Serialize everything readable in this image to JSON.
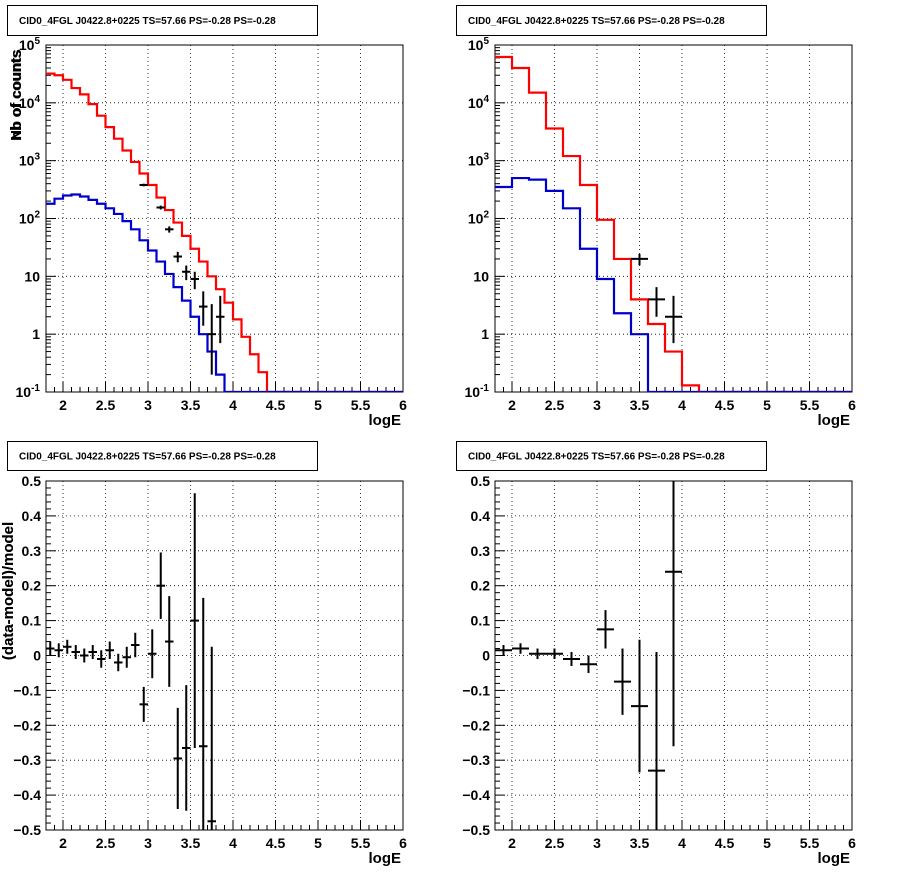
{
  "colors": {
    "data": "#000000",
    "total_model": "#ff0000",
    "source_model": "#0000cc",
    "grid": "#000000",
    "background": "#ffffff"
  },
  "chart_data": [
    {
      "id": "counts-fine",
      "type": "line",
      "title": "CID0_4FGL J0422.8+0225 TS=57.66 PS=-0.28 PS=-0.28",
      "xlabel": "logE",
      "ylabel": "Nb of counts",
      "xlim": [
        1.8,
        6.0
      ],
      "ylim": [
        0.1,
        100000
      ],
      "yscale": "log",
      "grid": true,
      "x_ticks": [
        "2",
        "2.5",
        "3",
        "3.5",
        "4",
        "4.5",
        "5",
        "5.5",
        "6"
      ],
      "y_ticks": [
        "10^-1",
        "1",
        "10",
        "10^2",
        "10^3",
        "10^4",
        "10^5"
      ],
      "bin_edges": [
        1.8,
        1.9,
        2.0,
        2.1,
        2.2,
        2.3,
        2.4,
        2.5,
        2.6,
        2.7,
        2.8,
        2.9,
        3.0,
        3.1,
        3.2,
        3.3,
        3.4,
        3.5,
        3.6,
        3.7,
        3.8,
        3.9,
        4.0,
        4.1,
        4.2,
        4.3,
        4.4,
        4.5,
        4.6,
        4.7,
        4.8,
        4.9,
        5.0,
        5.1,
        5.2,
        5.3,
        5.4,
        5.5,
        5.6,
        5.7,
        5.8,
        5.9,
        6.0
      ],
      "series": [
        {
          "kind": "step",
          "color": "total_model",
          "values": [
            32000,
            30000,
            25000,
            18000,
            14000,
            9500,
            6000,
            3800,
            2400,
            1500,
            950,
            600,
            380,
            230,
            140,
            85,
            50,
            30,
            18,
            10,
            6,
            3.5,
            1.8,
            0.9,
            0.45,
            0.22,
            0.1,
            0.1,
            0.1,
            0.1,
            0.1,
            0.1,
            0.1,
            0.1,
            0.1,
            0.1,
            0.1,
            0.1,
            0.1,
            0.1,
            0.1,
            0.1
          ]
        },
        {
          "kind": "step",
          "color": "source_model",
          "values": [
            180,
            220,
            250,
            260,
            240,
            210,
            180,
            150,
            120,
            90,
            65,
            42,
            28,
            18,
            11,
            6.5,
            3.8,
            2.0,
            1.0,
            0.5,
            0.2,
            0.1,
            0.1,
            0.1,
            0.1,
            0.1,
            0.1,
            0.1,
            0.1,
            0.1,
            0.1,
            0.1,
            0.1,
            0.1,
            0.1,
            0.1,
            0.1,
            0.1,
            0.1,
            0.1,
            0.1,
            0.1
          ]
        },
        {
          "kind": "points",
          "color": "data",
          "x": [
            2.95,
            3.15,
            3.25,
            3.35,
            3.45,
            3.55,
            3.65,
            3.75,
            3.85
          ],
          "values": [
            380,
            155,
            65,
            22,
            12,
            9,
            3,
            1,
            2
          ],
          "err_lo": [
            20,
            12,
            8,
            4.5,
            3.4,
            3,
            1.6,
            0.8,
            1.3
          ],
          "err_hi": [
            20,
            12,
            8,
            4.5,
            3.4,
            3,
            2.5,
            2.3,
            2.6
          ]
        }
      ]
    },
    {
      "id": "counts-coarse",
      "type": "line",
      "title": "CID0_4FGL J0422.8+0225 TS=57.66 PS=-0.28 PS=-0.28",
      "xlabel": "logE",
      "ylabel": "nb of counts",
      "xlim": [
        1.8,
        6.0
      ],
      "ylim": [
        0.1,
        100000
      ],
      "yscale": "log",
      "grid": true,
      "x_ticks": [
        "2",
        "2.5",
        "3",
        "3.5",
        "4",
        "4.5",
        "5",
        "5.5",
        "6"
      ],
      "y_ticks": [
        "10^-1",
        "1",
        "10",
        "10^2",
        "10^3",
        "10^4",
        "10^5"
      ],
      "bin_edges": [
        1.8,
        2.0,
        2.2,
        2.4,
        2.6,
        2.8,
        3.0,
        3.2,
        3.4,
        3.6,
        3.8,
        4.0,
        4.2,
        4.4,
        4.6,
        4.8,
        5.0,
        5.2,
        5.4,
        5.6,
        5.8,
        6.0
      ],
      "series": [
        {
          "kind": "step",
          "color": "total_model",
          "values": [
            62000,
            40000,
            15000,
            3600,
            1200,
            380,
            95,
            20,
            4,
            1.5,
            0.5,
            0.13,
            0.1,
            0.1,
            0.1,
            0.1,
            0.1,
            0.1,
            0.1,
            0.1,
            0.1
          ]
        },
        {
          "kind": "step",
          "color": "source_model",
          "values": [
            350,
            500,
            470,
            300,
            150,
            30,
            9,
            2.3,
            1,
            0.1,
            0.1,
            0.1,
            0.1,
            0.1,
            0.1,
            0.1,
            0.1,
            0.1,
            0.1,
            0.1,
            0.1
          ]
        },
        {
          "kind": "points",
          "color": "data",
          "x": [
            3.5,
            3.7,
            3.9
          ],
          "values": [
            20,
            4,
            2
          ],
          "err_lo": [
            4.5,
            2,
            1.3
          ],
          "err_hi": [
            4.5,
            2.5,
            2.6
          ]
        }
      ]
    },
    {
      "id": "residuals-fine",
      "type": "scatter",
      "title": "CID0_4FGL J0422.8+0225 TS=57.66 PS=-0.28 PS=-0.28",
      "xlabel": "logE",
      "ylabel": "(data-model)/model",
      "xlim": [
        1.8,
        6.0
      ],
      "ylim": [
        -0.5,
        0.5
      ],
      "grid": true,
      "x_ticks": [
        "2",
        "2.5",
        "3",
        "3.5",
        "4",
        "4.5",
        "5",
        "5.5",
        "6"
      ],
      "y_ticks": [
        "-0.5",
        "-0.4",
        "-0.3",
        "-0.2",
        "-0.1",
        "0",
        "0.1",
        "0.2",
        "0.3",
        "0.4",
        "0.5"
      ],
      "bin_width": 0.1,
      "series": [
        {
          "kind": "points",
          "color": "data",
          "x": [
            1.85,
            1.95,
            2.05,
            2.15,
            2.25,
            2.35,
            2.45,
            2.55,
            2.65,
            2.75,
            2.85,
            2.95,
            3.05,
            3.15,
            3.25,
            3.35,
            3.45,
            3.55,
            3.65,
            3.75
          ],
          "values": [
            0.02,
            0.015,
            0.025,
            0.01,
            0.0,
            0.01,
            -0.01,
            0.015,
            -0.02,
            -0.005,
            0.03,
            -0.14,
            0.005,
            0.2,
            0.04,
            -0.295,
            -0.265,
            0.1,
            -0.26,
            -0.475
          ],
          "err": [
            0.02,
            0.02,
            0.02,
            0.02,
            0.02,
            0.02,
            0.025,
            0.025,
            0.025,
            0.03,
            0.035,
            0.05,
            0.07,
            0.095,
            0.13,
            0.145,
            0.18,
            0.365,
            0.425,
            0.5
          ]
        }
      ]
    },
    {
      "id": "residuals-coarse",
      "type": "scatter",
      "title": "CID0_4FGL J0422.8+0225 TS=57.66 PS=-0.28 PS=-0.28",
      "xlabel": "logE",
      "ylabel": "(data-model)/model",
      "xlim": [
        1.8,
        6.0
      ],
      "ylim": [
        -0.5,
        0.5
      ],
      "grid": true,
      "x_ticks": [
        "2",
        "2.5",
        "3",
        "3.5",
        "4",
        "4.5",
        "5",
        "5.5",
        "6"
      ],
      "y_ticks": [
        "-0.5",
        "-0.4",
        "-0.3",
        "-0.2",
        "-0.1",
        "0",
        "0.1",
        "0.2",
        "0.3",
        "0.4",
        "0.5"
      ],
      "bin_width": 0.2,
      "series": [
        {
          "kind": "points",
          "color": "data",
          "x": [
            1.9,
            2.1,
            2.3,
            2.5,
            2.7,
            2.9,
            3.1,
            3.3,
            3.5,
            3.7,
            3.9
          ],
          "values": [
            0.015,
            0.02,
            0.005,
            0.005,
            -0.01,
            -0.025,
            0.075,
            -0.075,
            -0.145,
            -0.33,
            0.24
          ],
          "err": [
            0.015,
            0.015,
            0.015,
            0.015,
            0.02,
            0.025,
            0.055,
            0.095,
            0.19,
            0.34,
            0.5
          ]
        }
      ]
    }
  ]
}
